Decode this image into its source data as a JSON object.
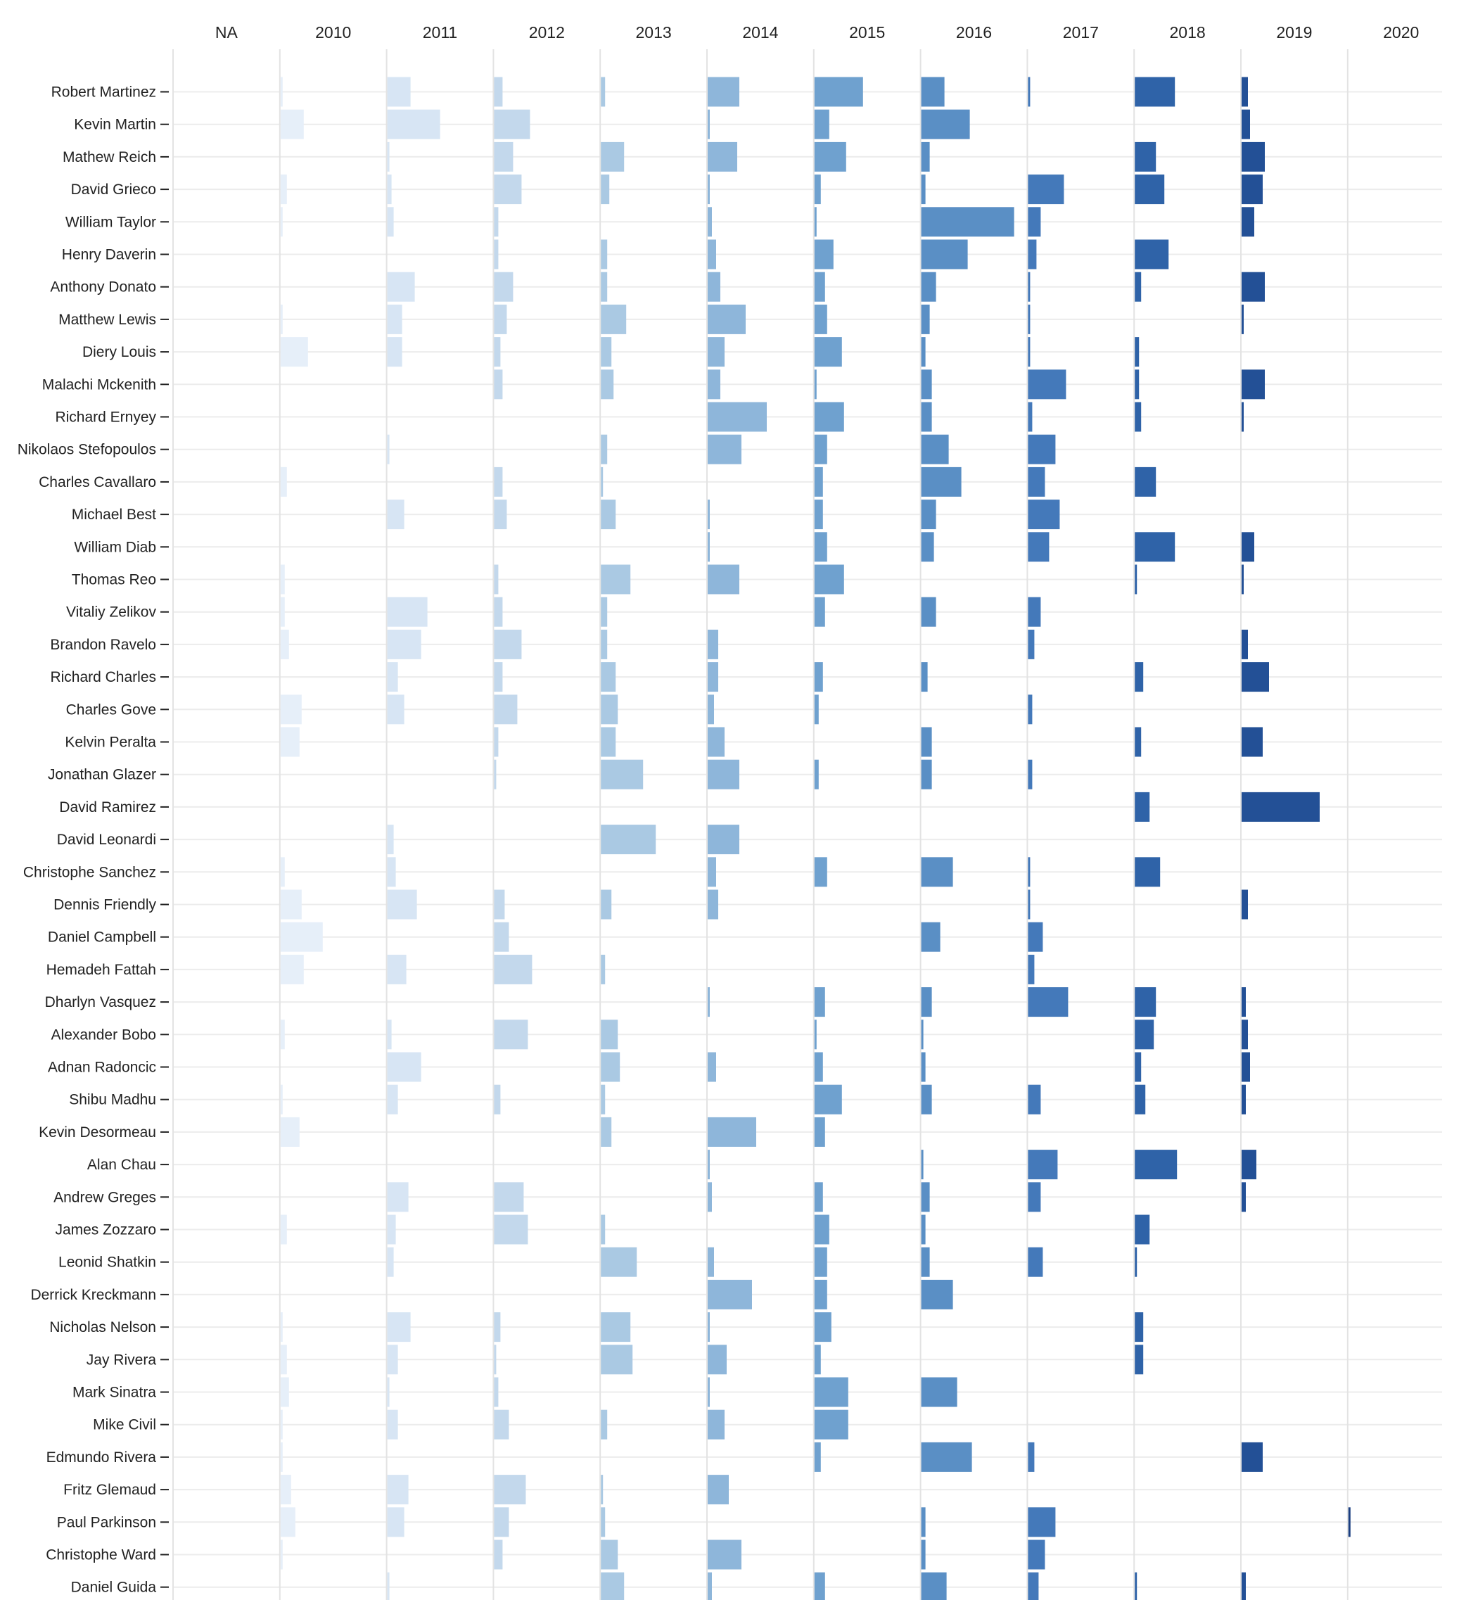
{
  "chart_data": {
    "type": "bar",
    "layout": "small-multiples",
    "columns": [
      "NA",
      "2010",
      "2011",
      "2012",
      "2013",
      "2014",
      "2015",
      "2016",
      "2017",
      "2018",
      "2019",
      "2020"
    ],
    "colors": [
      "#f1f5fb",
      "#e6eff9",
      "#d7e5f4",
      "#c3d8ec",
      "#aac9e3",
      "#8eb6da",
      "#6fa1cf",
      "#5a8fc5",
      "#4479ba",
      "#2f63a8",
      "#235096",
      "#1b3f81"
    ],
    "rows": [
      {
        "name": "Robert Martinez",
        "values": [
          0,
          0.5,
          5.5,
          2.0,
          1.0,
          7.5,
          11.5,
          5.5,
          0.5,
          9.5,
          1.5,
          0
        ]
      },
      {
        "name": "Kevin Martin",
        "values": [
          0,
          5.5,
          12.5,
          8.5,
          0,
          0.5,
          3.5,
          11.5,
          0,
          0,
          2.0,
          0
        ]
      },
      {
        "name": "Mathew Reich",
        "values": [
          0,
          0,
          0.5,
          4.5,
          5.5,
          7.0,
          7.5,
          2.0,
          0,
          5.0,
          5.5,
          0
        ]
      },
      {
        "name": "David Grieco",
        "values": [
          0,
          1.5,
          1.0,
          6.5,
          2.0,
          0.5,
          1.5,
          1.0,
          8.5,
          7.0,
          5.0,
          0
        ]
      },
      {
        "name": "William Taylor",
        "values": [
          0,
          0.5,
          1.5,
          1.0,
          0,
          1.0,
          0.5,
          22.0,
          3.0,
          0,
          3.0,
          0
        ]
      },
      {
        "name": "Henry Daverin",
        "values": [
          0,
          0,
          0,
          1.0,
          1.5,
          2.0,
          4.5,
          11.0,
          2.0,
          8.0,
          0,
          0
        ]
      },
      {
        "name": "Anthony Donato",
        "values": [
          0,
          0,
          6.5,
          4.5,
          1.5,
          3.0,
          2.5,
          3.5,
          0.5,
          1.5,
          5.5,
          0
        ]
      },
      {
        "name": "Matthew Lewis",
        "values": [
          0,
          0.5,
          3.5,
          3.0,
          6.0,
          9.0,
          3.0,
          2.0,
          0.5,
          0,
          0.5,
          0
        ]
      },
      {
        "name": "Diery Louis",
        "values": [
          0,
          6.5,
          3.5,
          1.5,
          2.5,
          4.0,
          6.5,
          1.0,
          0.5,
          1.0,
          0,
          0
        ]
      },
      {
        "name": "Malachi Mckenith",
        "values": [
          0,
          0,
          0,
          2.0,
          3.0,
          3.0,
          0.5,
          2.5,
          9.0,
          1.0,
          5.5,
          0
        ]
      },
      {
        "name": "Richard Ernyey",
        "values": [
          0,
          0,
          0,
          0,
          0,
          14.0,
          7.0,
          2.5,
          1.0,
          1.5,
          0.5,
          0
        ]
      },
      {
        "name": "Nikolaos Stefopoulos",
        "values": [
          0,
          0,
          0.5,
          0,
          1.5,
          8.0,
          3.0,
          6.5,
          6.5,
          0,
          0,
          0
        ]
      },
      {
        "name": "Charles Cavallaro",
        "values": [
          0,
          1.5,
          0,
          2.0,
          0.5,
          0,
          2.0,
          9.5,
          4.0,
          5.0,
          0,
          0
        ]
      },
      {
        "name": "Michael Best",
        "values": [
          0,
          0,
          4.0,
          3.0,
          3.5,
          0.5,
          2.0,
          3.5,
          7.5,
          0,
          0,
          0
        ]
      },
      {
        "name": "William Diab",
        "values": [
          0,
          0,
          0,
          0,
          0,
          0.5,
          3.0,
          3.0,
          5.0,
          9.5,
          3.0,
          0
        ]
      },
      {
        "name": "Thomas Reo",
        "values": [
          0,
          1.0,
          0,
          1.0,
          7.0,
          7.5,
          7.0,
          0,
          0,
          0.5,
          0.5,
          0
        ]
      },
      {
        "name": "Vitaliy Zelikov",
        "values": [
          0,
          1.0,
          9.5,
          2.0,
          1.5,
          0,
          2.5,
          3.5,
          3.0,
          0,
          0,
          0
        ]
      },
      {
        "name": "Brandon Ravelo",
        "values": [
          0,
          2.0,
          8.0,
          6.5,
          1.5,
          2.5,
          0,
          0,
          1.5,
          0,
          1.5,
          0
        ]
      },
      {
        "name": "Richard Charles",
        "values": [
          0,
          0,
          2.5,
          2.0,
          3.5,
          2.5,
          2.0,
          1.5,
          0,
          2.0,
          6.5,
          0
        ]
      },
      {
        "name": "Charles Gove",
        "values": [
          0,
          5.0,
          4.0,
          5.5,
          4.0,
          1.5,
          1.0,
          0,
          1.0,
          0,
          0,
          0
        ]
      },
      {
        "name": "Kelvin Peralta",
        "values": [
          0,
          4.5,
          0,
          1.0,
          3.5,
          4.0,
          0,
          2.5,
          0,
          1.5,
          5.0,
          0
        ]
      },
      {
        "name": "Jonathan Glazer",
        "values": [
          0,
          0,
          0,
          0.5,
          10.0,
          7.5,
          1.0,
          2.5,
          1.0,
          0,
          0,
          0
        ]
      },
      {
        "name": "David Ramirez",
        "values": [
          0,
          0,
          0,
          0,
          0,
          0,
          0,
          0,
          0,
          3.5,
          18.5,
          0
        ]
      },
      {
        "name": "David Leonardi",
        "values": [
          0,
          0,
          1.5,
          0,
          13.0,
          7.5,
          0,
          0,
          0,
          0,
          0,
          0
        ]
      },
      {
        "name": "Christophe Sanchez",
        "values": [
          0,
          1.0,
          2.0,
          0,
          0,
          2.0,
          3.0,
          7.5,
          0.5,
          6.0,
          0,
          0
        ]
      },
      {
        "name": "Dennis Friendly",
        "values": [
          0,
          5.0,
          7.0,
          2.5,
          2.5,
          2.5,
          0,
          0,
          0.5,
          0,
          1.5,
          0
        ]
      },
      {
        "name": "Daniel Campbell",
        "values": [
          0,
          10.0,
          0,
          3.5,
          0,
          0,
          0,
          4.5,
          3.5,
          0,
          0,
          0
        ]
      },
      {
        "name": "Hemadeh Fattah",
        "values": [
          0,
          5.5,
          4.5,
          9.0,
          1.0,
          0,
          0,
          0,
          1.5,
          0,
          0,
          0
        ]
      },
      {
        "name": "Dharlyn Vasquez",
        "values": [
          0,
          0,
          0,
          0,
          0,
          0.5,
          2.5,
          2.5,
          9.5,
          5.0,
          1.0,
          0
        ]
      },
      {
        "name": "Alexander Bobo",
        "values": [
          0,
          1.0,
          1.0,
          8.0,
          4.0,
          0,
          0.5,
          0.5,
          0,
          4.5,
          1.5,
          0
        ]
      },
      {
        "name": "Adnan Radoncic",
        "values": [
          0,
          0,
          8.0,
          0,
          4.5,
          2.0,
          2.0,
          1.0,
          0,
          1.5,
          2.0,
          0
        ]
      },
      {
        "name": "Shibu Madhu",
        "values": [
          0,
          0.5,
          2.5,
          1.5,
          1.0,
          0,
          6.5,
          2.5,
          3.0,
          2.5,
          1.0,
          0
        ]
      },
      {
        "name": "Kevin Desormeau",
        "values": [
          0,
          4.5,
          0,
          0,
          2.5,
          11.5,
          2.5,
          0,
          0,
          0,
          0,
          0
        ]
      },
      {
        "name": "Alan Chau",
        "values": [
          0,
          0,
          0,
          0,
          0,
          0.5,
          0,
          0.5,
          7.0,
          10.0,
          3.5,
          0
        ]
      },
      {
        "name": "Andrew Greges",
        "values": [
          0,
          0,
          5.0,
          7.0,
          0,
          1.0,
          2.0,
          2.0,
          3.0,
          0,
          1.0,
          0
        ]
      },
      {
        "name": "James Zozzaro",
        "values": [
          0,
          1.5,
          2.0,
          8.0,
          1.0,
          0,
          3.5,
          1.0,
          0,
          3.5,
          0,
          0
        ]
      },
      {
        "name": "Leonid Shatkin",
        "values": [
          0,
          0,
          1.5,
          0,
          8.5,
          1.5,
          3.0,
          2.0,
          3.5,
          0.5,
          0,
          0
        ]
      },
      {
        "name": "Derrick Kreckmann",
        "values": [
          0,
          0,
          0,
          0,
          0,
          10.5,
          3.0,
          7.5,
          0,
          0,
          0,
          0
        ]
      },
      {
        "name": "Nicholas Nelson",
        "values": [
          0,
          0.5,
          5.5,
          1.5,
          7.0,
          0.5,
          4.0,
          0,
          0,
          2.0,
          0,
          0
        ]
      },
      {
        "name": "Jay Rivera",
        "values": [
          0,
          1.5,
          2.5,
          0.5,
          7.5,
          4.5,
          1.5,
          0,
          0,
          2.0,
          0,
          0
        ]
      },
      {
        "name": "Mark Sinatra",
        "values": [
          0,
          2.0,
          0.5,
          1.0,
          0,
          0.5,
          8.0,
          8.5,
          0,
          0,
          0,
          0
        ]
      },
      {
        "name": "Mike Civil",
        "values": [
          0,
          0.5,
          2.5,
          3.5,
          1.5,
          4.0,
          8.0,
          0,
          0,
          0,
          0,
          0
        ]
      },
      {
        "name": "Edmundo Rivera",
        "values": [
          0,
          0.5,
          0,
          0,
          0,
          0,
          1.5,
          12.0,
          1.5,
          0,
          5.0,
          0
        ]
      },
      {
        "name": "Fritz Glemaud",
        "values": [
          0,
          2.5,
          5.0,
          7.5,
          0.5,
          5.0,
          0,
          0,
          0,
          0,
          0,
          0
        ]
      },
      {
        "name": "Paul Parkinson",
        "values": [
          0,
          3.5,
          4.0,
          3.5,
          1.0,
          0,
          0,
          1.0,
          6.5,
          0,
          0,
          0.5
        ]
      },
      {
        "name": "Christophe Ward",
        "values": [
          0,
          0.5,
          0,
          2.0,
          4.0,
          8.0,
          0,
          1.0,
          4.0,
          0,
          0,
          0
        ]
      },
      {
        "name": "Daniel Guida",
        "values": [
          0,
          0,
          0.5,
          0,
          5.5,
          1.0,
          2.5,
          6.0,
          2.5,
          0.5,
          1.0,
          0
        ]
      }
    ]
  }
}
